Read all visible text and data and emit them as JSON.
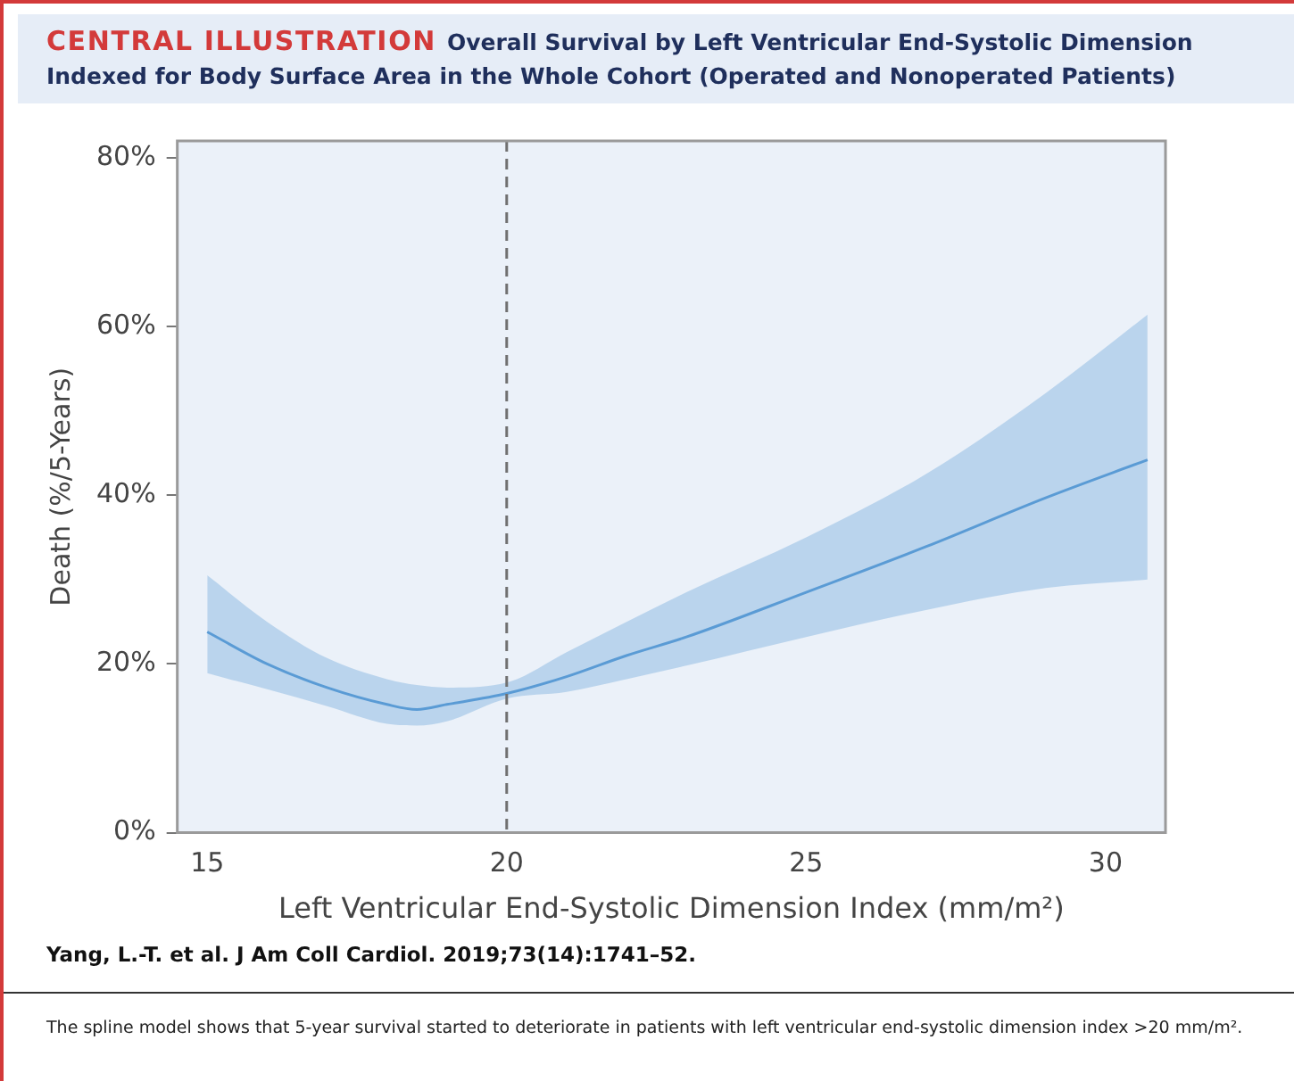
{
  "chart_data": {
    "type": "line",
    "title": "CENTRAL ILLUSTRATION",
    "subtitle": "Overall Survival by Left Ventricular End-Systolic Dimension Indexed for Body Surface Area in the Whole Cohort (Operated and Nonoperated Patients)",
    "xlabel": "Left Ventricular End-Systolic Dimension Index (mm/m²)",
    "ylabel": "Death (%/5-Years)",
    "x": [
      15,
      16,
      17,
      18,
      18.5,
      19,
      20,
      21,
      22,
      23,
      25,
      27,
      29,
      30.7
    ],
    "series": [
      {
        "color": "#5b9bd5",
        "values": [
          23.8,
          20.0,
          17.2,
          15.2,
          14.6,
          15.2,
          16.5,
          18.5,
          21.0,
          23.2,
          28.5,
          33.9,
          39.7,
          44.2
        ],
        "lower": [
          18.9,
          17.0,
          15.0,
          12.9,
          12.7,
          13.2,
          15.9,
          16.7,
          18.2,
          19.8,
          23.2,
          26.4,
          29.0,
          30.0
        ],
        "upper": [
          30.5,
          25.0,
          20.7,
          18.2,
          17.5,
          17.2,
          17.8,
          21.4,
          25.0,
          28.5,
          35.0,
          42.5,
          52.1,
          61.4
        ]
      }
    ],
    "xlim": [
      14.5,
      31
    ],
    "xticks": [
      15,
      20,
      25,
      30
    ],
    "ylim": [
      0,
      82
    ],
    "yticks": [
      {
        "value": 0,
        "label": "0%"
      },
      {
        "value": 20,
        "label": "20%"
      },
      {
        "value": 40,
        "label": "40%"
      },
      {
        "value": 60,
        "label": "60%"
      },
      {
        "value": 80,
        "label": "80%"
      }
    ],
    "ref_lines": [
      {
        "axis": "x",
        "value": 20,
        "color": "#707070",
        "line_style": "dashed"
      }
    ],
    "grid": false,
    "legend": false,
    "marker": "none",
    "line_style": "solid",
    "annotations": [
      "Yang, L.-T. et al. J Am Coll Cardiol. 2019;73(14):1741–52.",
      "The spline model shows that 5-year survival started to deteriorate in patients with left ventricular end-systolic dimension index >20 mm/m²."
    ]
  }
}
